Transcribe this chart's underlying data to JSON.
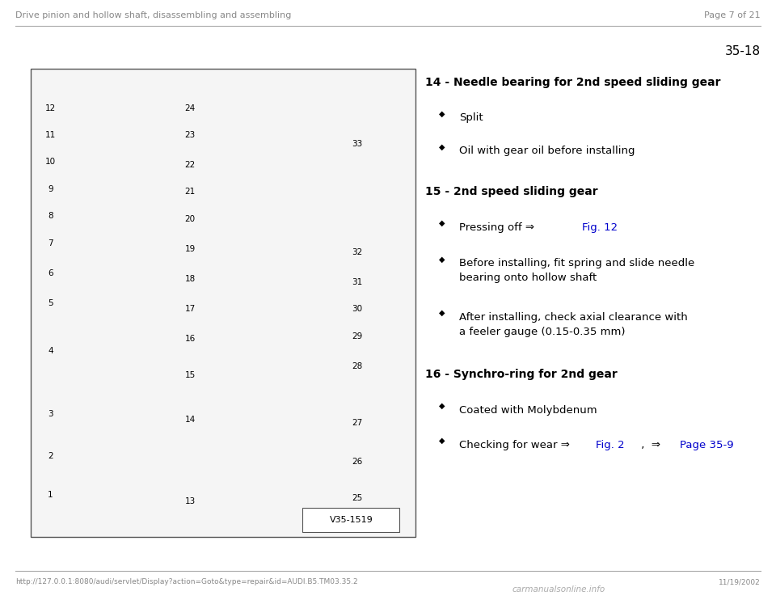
{
  "page_header_left": "Drive pinion and hollow shaft, disassembling and assembling",
  "page_header_right": "Page 7 of 21",
  "page_number": "35-18",
  "footer_url": "http://127.0.0.1:8080/audi/servlet/Display?action=Goto&type=repair&id=AUDI.B5.TM03.35.2",
  "footer_date": "11/19/2002",
  "footer_logo": "carmanualsonline.info",
  "section_14_title": "14 - Needle bearing for 2nd speed sliding gear",
  "section_14_bullets": [
    "Split",
    "Oil with gear oil before installing"
  ],
  "section_15_title": "15 - 2nd speed sliding gear",
  "section_16_title": "16 - Synchro-ring for 2nd gear",
  "image_label": "V35-1519",
  "bg_color": "#ffffff",
  "text_color": "#000000",
  "link_color": "#0000cc",
  "header_color": "#888888"
}
